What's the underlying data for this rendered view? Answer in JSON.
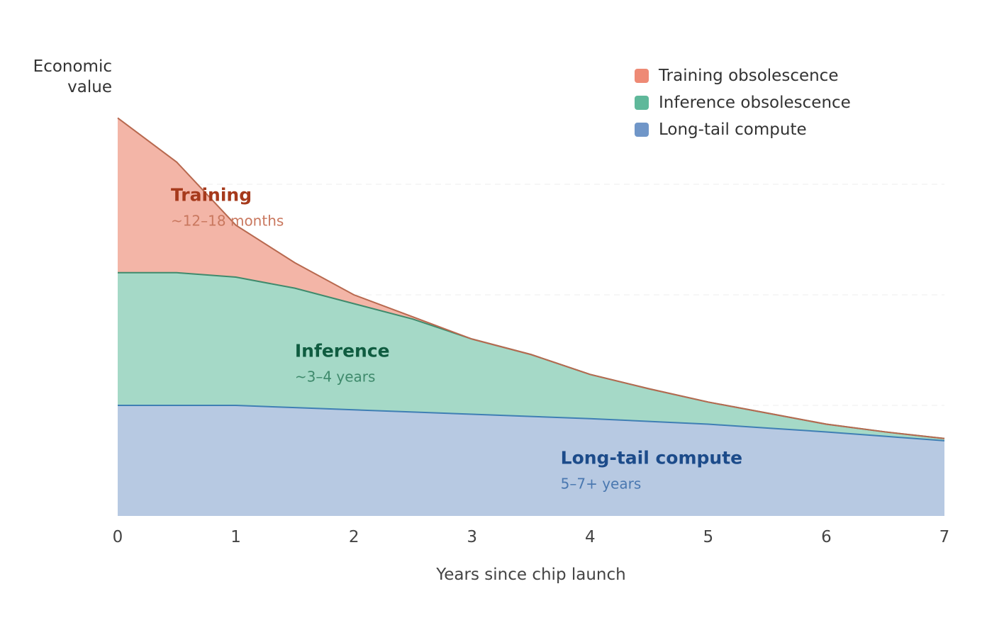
{
  "chart_data": {
    "type": "area",
    "stacked": true,
    "title": "",
    "xlabel": "Years since chip launch",
    "ylabel": "Economic value",
    "ylabel_lines": [
      "Economic",
      "value"
    ],
    "xlim": [
      0,
      7
    ],
    "ylim": [
      0,
      4
    ],
    "x_ticks": [
      0,
      1,
      2,
      3,
      4,
      5,
      6,
      7
    ],
    "y_gridlines": [
      1,
      2,
      3
    ],
    "grid": true,
    "legend_position": "top-right",
    "x": [
      0,
      0.5,
      1,
      1.5,
      2,
      2.5,
      3,
      3.5,
      4,
      4.5,
      5,
      5.5,
      6,
      6.5,
      7
    ],
    "series": [
      {
        "name": "Long-tail compute",
        "fill": "#b7c9e2",
        "line": "#3f7fb4",
        "legend_color": "#7096c8",
        "values": [
          1.0,
          1.0,
          1.0,
          0.98,
          0.96,
          0.94,
          0.92,
          0.9,
          0.88,
          0.855,
          0.83,
          0.795,
          0.76,
          0.72,
          0.68
        ]
      },
      {
        "name": "Inference obsolescence",
        "fill": "#a5d9c7",
        "line": "#3f8a6c",
        "legend_color": "#5fb89a",
        "values": [
          1.2,
          1.2,
          1.16,
          1.08,
          0.96,
          0.84,
          0.68,
          0.56,
          0.4,
          0.295,
          0.2,
          0.135,
          0.07,
          0.04,
          0.02
        ]
      },
      {
        "name": "Training obsolescence",
        "fill": "#f3b5a7",
        "line": "#b8694f",
        "legend_color": "#ee8a75",
        "values": [
          1.4,
          1.0,
          0.47,
          0.23,
          0.08,
          0.02,
          0,
          0,
          0,
          0,
          0,
          0,
          0,
          0,
          0
        ]
      }
    ],
    "annotations": [
      {
        "title": "Training",
        "subtitle": "~12–18 months",
        "x": 0.45,
        "y": 2.85,
        "title_color": "#a63a1c",
        "sub_color": "#c9785f"
      },
      {
        "title": "Inference",
        "subtitle": "~3–4 years",
        "x": 1.5,
        "y": 1.44,
        "title_color": "#0f5c40",
        "sub_color": "#3f8a6c"
      },
      {
        "title": "Long-tail compute",
        "subtitle": "5–7+ years",
        "x": 3.75,
        "y": 0.47,
        "title_color": "#1c4b8a",
        "sub_color": "#4a78b0"
      }
    ]
  }
}
